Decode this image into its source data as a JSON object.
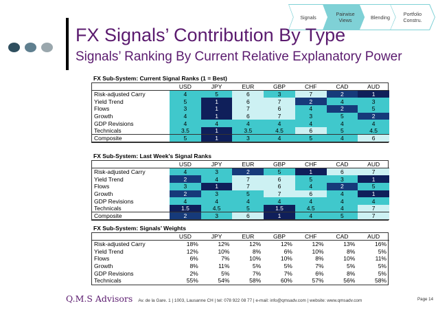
{
  "nav": {
    "items": [
      {
        "label_lines": [
          "Signals"
        ],
        "active": false
      },
      {
        "label_lines": [
          "Pairwise",
          "Views"
        ],
        "active": true
      },
      {
        "label_lines": [
          "Blending"
        ],
        "active": false
      },
      {
        "label_lines": [
          "Portfolio",
          "Constru."
        ],
        "active": false
      }
    ]
  },
  "header": {
    "title": "FX Signals’ Contribution By Type",
    "subtitle": "Signals’ Ranking By Current Relative Explanatory Power"
  },
  "columns": [
    "USD",
    "JPY",
    "EUR",
    "GBP",
    "CHF",
    "CAD",
    "AUD"
  ],
  "colors": {
    "rank1": "#0f1f5a",
    "rank2": "#163a7a",
    "rank_mid": "#40c8cc",
    "rank_light": "#cdf1f3",
    "text_light": "#ffffff",
    "text_dark": "#000000",
    "accent": "#5a1a6e",
    "nav": "#7fd1d6"
  },
  "current": {
    "title": "FX Sub-System: Current Signal Ranks (1 = Best)",
    "rows": [
      {
        "label": "Risk-adjusted Carry",
        "values": [
          "4",
          "5",
          "6",
          "3",
          "7",
          "2",
          "1"
        ]
      },
      {
        "label": "Yield Trend",
        "values": [
          "5",
          "1",
          "6",
          "7",
          "2",
          "4",
          "3"
        ]
      },
      {
        "label": "Flows",
        "values": [
          "3",
          "1",
          "7",
          "6",
          "4",
          "2",
          "5"
        ]
      },
      {
        "label": "Growth",
        "values": [
          "4",
          "1",
          "6",
          "7",
          "3",
          "5",
          "2"
        ]
      },
      {
        "label": "GDP Revisions",
        "values": [
          "4",
          "4",
          "4",
          "4",
          "4",
          "4",
          "4"
        ]
      },
      {
        "label": "Technicals",
        "values": [
          "3.5",
          "1",
          "3.5",
          "4.5",
          "6",
          "5",
          "4.5"
        ]
      }
    ],
    "composite": {
      "label": "Composite",
      "values": [
        "5",
        "1",
        "3",
        "4",
        "5",
        "4",
        "6"
      ]
    }
  },
  "last_week": {
    "title": "FX Sub-System: Last Week’s Signal Ranks",
    "rows": [
      {
        "label": "Risk-adjusted Carry",
        "values": [
          "4",
          "3",
          "2",
          "5",
          "1",
          "6",
          "7"
        ]
      },
      {
        "label": "Yield Trend",
        "values": [
          "2",
          "4",
          "7",
          "6",
          "5",
          "3",
          "1"
        ]
      },
      {
        "label": "Flows",
        "values": [
          "3",
          "1",
          "7",
          "6",
          "4",
          "2",
          "5"
        ]
      },
      {
        "label": "Growth",
        "values": [
          "2",
          "3",
          "5",
          "7",
          "6",
          "4",
          "1"
        ]
      },
      {
        "label": "GDP Revisions",
        "values": [
          "4",
          "4",
          "4",
          "4",
          "4",
          "4",
          "4"
        ]
      },
      {
        "label": "Technicals",
        "values": [
          "1.5",
          "4.5",
          "5",
          "1.5",
          "4.5",
          "4",
          "7"
        ]
      }
    ],
    "composite": {
      "label": "Composite",
      "values": [
        "2",
        "3",
        "6",
        "1",
        "4",
        "5",
        "7"
      ]
    }
  },
  "weights": {
    "title": "FX Sub-System: Signals’ Weights",
    "rows": [
      {
        "label": "Risk-adjusted Carry",
        "values": [
          "18%",
          "12%",
          "12%",
          "12%",
          "12%",
          "13%",
          "16%"
        ]
      },
      {
        "label": "Yield Trend",
        "values": [
          "12%",
          "10%",
          "8%",
          "6%",
          "10%",
          "8%",
          "5%"
        ]
      },
      {
        "label": "Flows",
        "values": [
          "6%",
          "7%",
          "10%",
          "10%",
          "8%",
          "10%",
          "11%"
        ]
      },
      {
        "label": "Growth",
        "values": [
          "8%",
          "11%",
          "5%",
          "5%",
          "7%",
          "5%",
          "5%"
        ]
      },
      {
        "label": "GDP Revisions",
        "values": [
          "2%",
          "5%",
          "7%",
          "7%",
          "6%",
          "8%",
          "5%"
        ]
      },
      {
        "label": "Technicals",
        "values": [
          "55%",
          "54%",
          "58%",
          "60%",
          "57%",
          "56%",
          "58%"
        ]
      }
    ]
  },
  "footer": {
    "brand": "Q.M.S Advisors",
    "address": "Av. de la Gare. 1  |  1003, Lausanne CH  |  tel: 078 922 08 77  |  e-mail: info@qmsadv.com  |  website: www.qmsadv.com",
    "page": "Page 14"
  }
}
